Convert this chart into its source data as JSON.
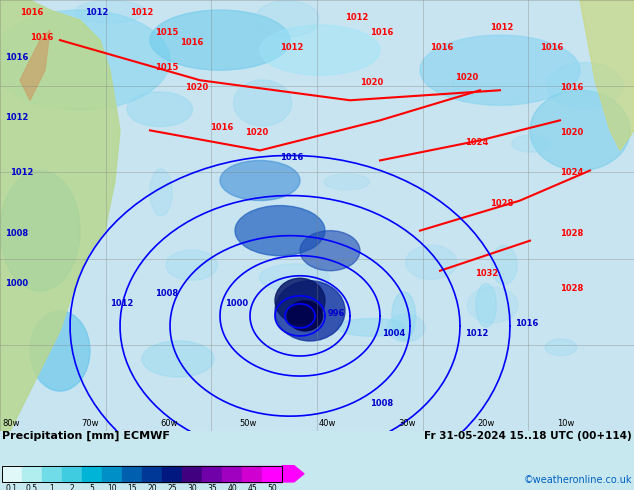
{
  "title_left": "Precipitation [mm] ECMWF",
  "title_right": "Fr 31-05-2024 15..18 UTC (00+114)",
  "credit": "©weatheronline.co.uk",
  "colorbar_values": [
    0.1,
    0.5,
    1,
    2,
    5,
    10,
    15,
    20,
    25,
    30,
    35,
    40,
    45,
    50
  ],
  "colorbar_colors": [
    "#e0f8f8",
    "#b0eef0",
    "#70dce8",
    "#40cce0",
    "#00b4d8",
    "#0090c8",
    "#0060b0",
    "#003898",
    "#001880",
    "#400080",
    "#7000a8",
    "#a000c0",
    "#d000d0",
    "#ff00ff"
  ],
  "background_color": "#d0f0f8",
  "map_bg": "#e8f4f8",
  "fig_width": 6.34,
  "fig_height": 4.9,
  "dpi": 100
}
